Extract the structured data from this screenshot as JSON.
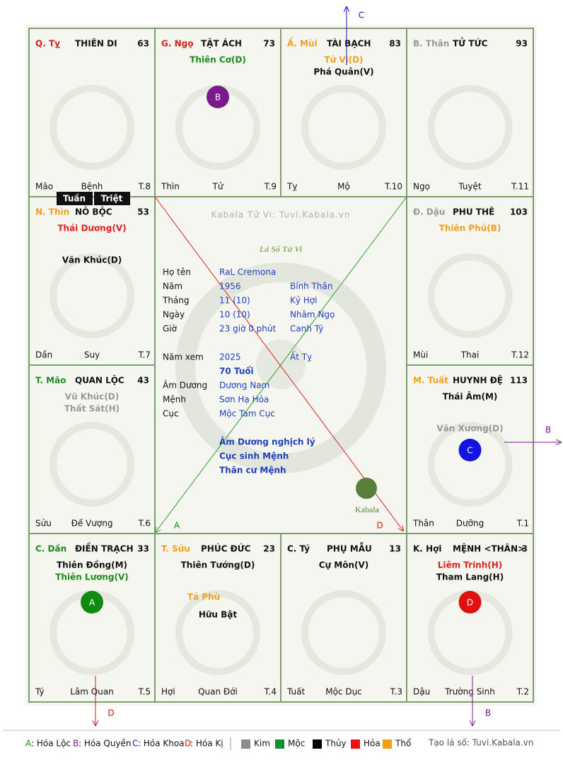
{
  "watermark": "Kabala Tử Vi: Tuvi.Kabala.vn",
  "title": "Lá Số Tử Vi",
  "logo": "Kabala",
  "cells": [
    {
      "branch": "Q. Tỵ",
      "branch_color": "#d62020",
      "name": "THIÊN DI",
      "number": "63",
      "stars": [],
      "minor": [],
      "bottom": [
        "Mão",
        "Bệnh",
        "T.8"
      ]
    },
    {
      "branch": "G. Ngọ",
      "branch_color": "#d62020",
      "name": "TẬT ÁCH",
      "number": "73",
      "stars": [
        {
          "text": "Thiên Cơ(D)",
          "color": "#1e8a1e"
        }
      ],
      "minor": [],
      "badge": {
        "letter": "B",
        "color": "#7b1a8c"
      },
      "bottom": [
        "Thìn",
        "Tử",
        "T.9"
      ]
    },
    {
      "branch": "Ấ. Mùi",
      "branch_color": "#f0a020",
      "name": "TÀI BẠCH",
      "number": "83",
      "stars": [
        {
          "text": "Tử Vi(D)",
          "color": "#f0a020"
        },
        {
          "text": "Phá Quân(V)",
          "color": "#111"
        }
      ],
      "minor": [],
      "bottom": [
        "Tỵ",
        "Mộ",
        "T.10"
      ]
    },
    {
      "branch": "B. Thân",
      "branch_color": "#999",
      "name": "TỬ TỨC",
      "number": "93",
      "stars": [],
      "minor": [],
      "bottom": [
        "Ngọ",
        "Tuyệt",
        "T.11"
      ]
    },
    {
      "branch": "N. Thìn",
      "branch_color": "#f0a020",
      "name": "NÔ BỘC",
      "number": "53",
      "stars": [
        {
          "text": "Thái Dương(V)",
          "color": "#e02020"
        }
      ],
      "minor": [
        {
          "text": "Văn Khúc(D)",
          "color": "#111"
        }
      ],
      "tags": [
        "Tuần",
        "Triệt"
      ],
      "bottom": [
        "Dần",
        "Suy",
        "T.7"
      ]
    },
    {
      "branch": "Đ. Dậu",
      "branch_color": "#999",
      "name": "PHU THÊ",
      "number": "103",
      "stars": [
        {
          "text": "Thiên Phủ(B)",
          "color": "#f0a020"
        }
      ],
      "minor": [],
      "bottom": [
        "Mùi",
        "Thai",
        "T.12"
      ]
    },
    {
      "branch": "T. Mão",
      "branch_color": "#1e8a1e",
      "name": "QUAN LỘC",
      "number": "43",
      "stars": [
        {
          "text": "Vũ Khúc(D)",
          "color": "#999"
        },
        {
          "text": "Thất Sát(H)",
          "color": "#999"
        }
      ],
      "minor": [],
      "bottom": [
        "Sửu",
        "Đế Vượng",
        "T.6"
      ]
    },
    {
      "branch": "M. Tuất",
      "branch_color": "#f0a020",
      "name": "HUYNH ĐỆ",
      "number": "113",
      "stars": [
        {
          "text": "Thái Âm(M)",
          "color": "#111"
        }
      ],
      "minor": [
        {
          "text": "Văn Xương(D)",
          "color": "#999"
        }
      ],
      "badge": {
        "letter": "C",
        "color": "#1414e0"
      },
      "bottom": [
        "Thân",
        "Dưỡng",
        "T.1"
      ]
    },
    {
      "branch": "C. Dần",
      "branch_color": "#1e8a1e",
      "name": "ĐIỀN TRẠCH",
      "number": "33",
      "stars": [
        {
          "text": "Thiên Đồng(M)",
          "color": "#111"
        },
        {
          "text": "Thiên Lương(V)",
          "color": "#1e8a1e"
        }
      ],
      "minor": [],
      "badge": {
        "letter": "A",
        "color": "#108a10"
      },
      "bottom": [
        "Tý",
        "Lâm Quan",
        "T.5"
      ]
    },
    {
      "branch": "T. Sửu",
      "branch_color": "#f0a020",
      "name": "PHÚC ĐỨC",
      "number": "23",
      "stars": [
        {
          "text": "Thiên Tướng(D)",
          "color": "#111"
        }
      ],
      "minor": [
        {
          "text": "Tả Phù",
          "color": "#f0a020"
        },
        {
          "text": "Hữu Bật",
          "color": "#111"
        }
      ],
      "bottom": [
        "Hợi",
        "Quan Đới",
        "T.4"
      ]
    },
    {
      "branch": "C. Tý",
      "branch_color": "#111",
      "name": "PHỤ MẪU",
      "number": "13",
      "stars": [
        {
          "text": "Cự Môn(V)",
          "color": "#111"
        }
      ],
      "minor": [],
      "bottom": [
        "Tuất",
        "Mộc Dục",
        "T.3"
      ]
    },
    {
      "branch": "K. Hợi",
      "branch_color": "#111",
      "name": "MỆNH <THÂN>",
      "number": "3",
      "stars": [
        {
          "text": "Liêm Trinh(H)",
          "color": "#e02020"
        },
        {
          "text": "Tham Lang(H)",
          "color": "#111"
        }
      ],
      "minor": [],
      "badge": {
        "letter": "D",
        "color": "#e01010"
      },
      "bottom": [
        "Dậu",
        "Trường Sinh",
        "T.2"
      ]
    }
  ],
  "info": [
    [
      "Họ tên",
      "RaL Cremona"
    ],
    [
      "Năm",
      "1956",
      "Bính Thân"
    ],
    [
      "Tháng",
      "11 (10)",
      "Kỷ Hợi"
    ],
    [
      "Ngày",
      "10  (10)",
      "Nhâm Ngọ"
    ],
    [
      "Giờ",
      "23 giờ 0 phút",
      "Canh Tý"
    ]
  ],
  "view_year": [
    "Năm xem",
    "2025",
    "Ất Tỵ"
  ],
  "age": "70 Tuổi",
  "info2": [
    [
      "Âm Dương",
      "Dương Nam"
    ],
    [
      "Mệnh",
      "Sơn Hạ Hỏa"
    ],
    [
      "Cục",
      "Mộc Tam Cục"
    ]
  ],
  "notes": [
    "Âm Dương nghịch lý",
    "Cục sinh Mệnh",
    "Thân cư Mệnh"
  ],
  "arrows": [
    {
      "label": "C",
      "color": "#1414c8"
    },
    {
      "label": "B",
      "color": "#7b1a8c"
    },
    {
      "label": "D",
      "color": "#e01010"
    },
    {
      "label": "B",
      "color": "#7b1a8c"
    },
    {
      "label": "A",
      "color": "#1e8a1e"
    },
    {
      "label": "D",
      "color": "#e01010"
    }
  ],
  "legend": {
    "transforms": [
      {
        "key": "A",
        "text": ": Hóa Lộc",
        "color": "#1e8a1e"
      },
      {
        "key": "B",
        "text": ": Hóa Quyền",
        "color": "#7b1a8c"
      },
      {
        "key": "C",
        "text": ": Hóa Khoa",
        "color": "#1414c8"
      },
      {
        "key": "D",
        "text": ": Hóa Kị",
        "color": "#e01010"
      }
    ],
    "elements": [
      {
        "text": "Kim",
        "color": "#8c8c8c"
      },
      {
        "text": "Mộc",
        "color": "#109030"
      },
      {
        "text": "Thủy",
        "color": "#000"
      },
      {
        "text": "Hỏa",
        "color": "#f01010"
      },
      {
        "text": "Thổ",
        "color": "#f0a010"
      }
    ],
    "credit": "Tạo lá số: Tuvi.Kabala.vn"
  }
}
